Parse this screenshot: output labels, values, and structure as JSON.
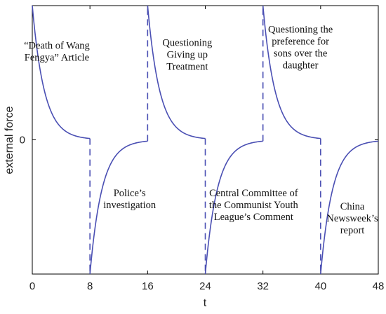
{
  "chart_data": {
    "type": "line",
    "title": "",
    "xlabel": "t",
    "ylabel": "external force",
    "xlim": [
      0,
      48
    ],
    "ylim": [
      -1,
      1
    ],
    "x_ticks": [
      0,
      8,
      16,
      24,
      32,
      40,
      48
    ],
    "x_tick_labels": [
      "0",
      "8",
      "16",
      "24",
      "32",
      "40",
      "48"
    ],
    "y_ticks": [
      0
    ],
    "y_tick_labels": [
      "0"
    ],
    "grid": false,
    "line_color": "#4a4fb3",
    "segments": [
      {
        "start": 0,
        "end": 8,
        "from": 1,
        "to": 0.01,
        "kind": "decay_from_top"
      },
      {
        "start": 8,
        "end": 16,
        "from": -1,
        "to": -0.01,
        "kind": "rise_from_bottom"
      },
      {
        "start": 16,
        "end": 24,
        "from": 1,
        "to": 0.01,
        "kind": "decay_from_top"
      },
      {
        "start": 24,
        "end": 32,
        "from": -1,
        "to": -0.01,
        "kind": "rise_from_bottom"
      },
      {
        "start": 32,
        "end": 40,
        "from": 1,
        "to": 0.01,
        "kind": "decay_from_top"
      },
      {
        "start": 40,
        "end": 48,
        "from": -1,
        "to": -0.01,
        "kind": "rise_from_bottom"
      }
    ],
    "jumps": [
      8,
      16,
      24,
      32,
      40
    ],
    "annotations": [
      {
        "lines": [
          "“Death of Wang",
          "Fengya” Article"
        ],
        "x": 3.4,
        "y": 0.68
      },
      {
        "lines": [
          "Police’s",
          "investigation"
        ],
        "x": 13.5,
        "y": -0.42
      },
      {
        "lines": [
          "Questioning",
          "Giving up",
          "Treatment"
        ],
        "x": 21.5,
        "y": 0.7
      },
      {
        "lines": [
          "Central Committee of",
          "the Communist Youth",
          "League’s Comment"
        ],
        "x": 30.7,
        "y": -0.42
      },
      {
        "lines": [
          "Questioning the",
          "preference for",
          "sons over the",
          "daughter"
        ],
        "x": 37.2,
        "y": 0.8
      },
      {
        "lines": [
          "China",
          "Newsweek’s",
          "report"
        ],
        "x": 44.4,
        "y": -0.52
      }
    ]
  }
}
